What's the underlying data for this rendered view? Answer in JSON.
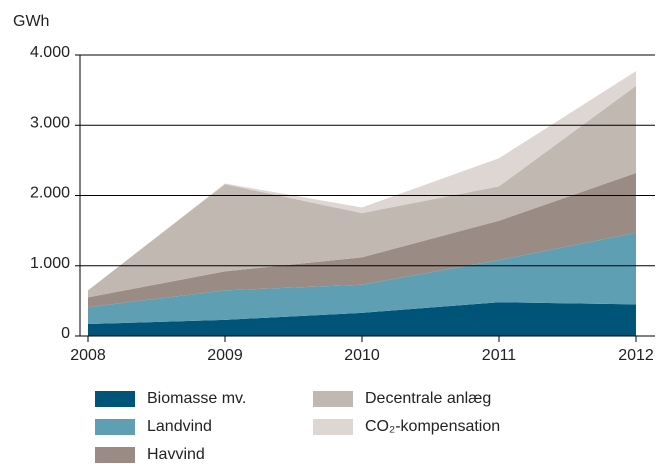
{
  "chart_data": {
    "type": "stacked_area",
    "y_label": "GWh",
    "categories": [
      "2008",
      "2009",
      "2010",
      "2011",
      "2012"
    ],
    "series": [
      {
        "name": "Biomasse mv.",
        "color": "#005478",
        "values": [
          170,
          230,
          330,
          480,
          450
        ]
      },
      {
        "name": "Landvind",
        "color": "#5f9fb4",
        "values": [
          240,
          420,
          400,
          600,
          1020
        ]
      },
      {
        "name": "Havvind",
        "color": "#9a8c84",
        "values": [
          140,
          270,
          390,
          560,
          850
        ]
      },
      {
        "name": "Decentrale anlæg",
        "color": "#c0b8b1",
        "values": [
          100,
          1240,
          630,
          490,
          1240
        ]
      },
      {
        "name": "CO₂-kompensation",
        "color": "#ddd6d3",
        "values": [
          0,
          10,
          80,
          400,
          210
        ]
      }
    ],
    "ylim": [
      0,
      4000
    ],
    "yticks": [
      0,
      {
        "value": 1000,
        "label": "1.000"
      },
      {
        "value": 2000,
        "label": "2.000"
      },
      {
        "value": 3000,
        "label": "3.000"
      },
      {
        "value": 4000,
        "label": "4.000"
      }
    ],
    "grid": true
  }
}
